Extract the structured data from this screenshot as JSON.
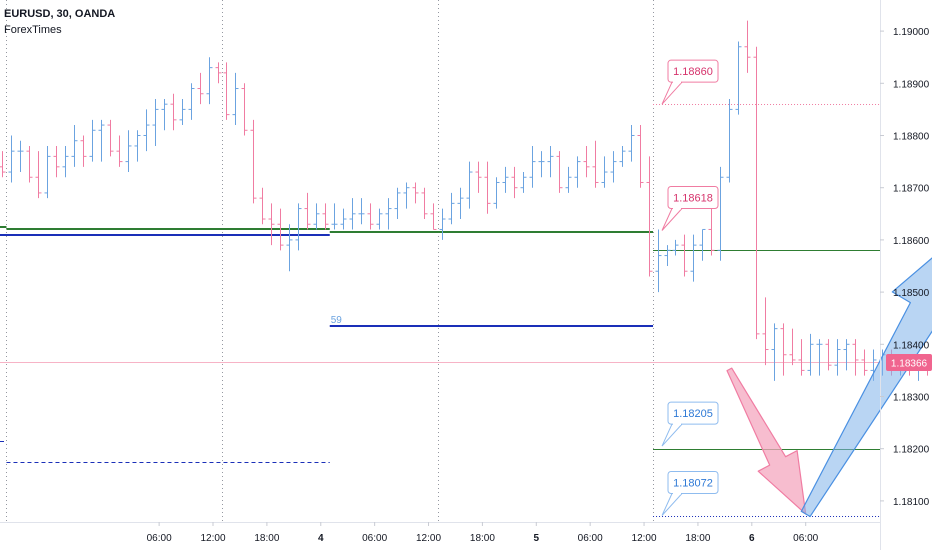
{
  "header": {
    "title": "EURUSD, 30, OANDA",
    "subtitle": "ForexTimes"
  },
  "colors": {
    "bull": "#6ba3e0",
    "bear": "#f07ca2",
    "green": "#2e7d32",
    "blue": "#1a2fb8",
    "price_line": "#f7b3c6",
    "arrow_blue": "#7fb3ea",
    "arrow_pink": "#f4a7bf",
    "label_pink_text": "#d6336c",
    "label_blue_text": "#2f7ad6",
    "current_badge": "#f0658f"
  },
  "chart_data": {
    "type": "line",
    "title": "EURUSD, 30, OANDA",
    "y_axis": {
      "ticks": [
        "1.19000",
        "1.18900",
        "1.18800",
        "1.18700",
        "1.18600",
        "1.18500",
        "1.18400",
        "1.18300",
        "1.18200",
        "1.18100"
      ],
      "range": [
        1.1805,
        1.1905
      ]
    },
    "x_axis": {
      "ticks": [
        {
          "label": "06:00",
          "t": 18.5
        },
        {
          "label": "12:00",
          "t": 24.5
        },
        {
          "label": "18:00",
          "t": 30.5
        },
        {
          "label": "4",
          "t": 36.5,
          "bold": true
        },
        {
          "label": "06:00",
          "t": 42.5
        },
        {
          "label": "12:00",
          "t": 48.5
        },
        {
          "label": "18:00",
          "t": 54.5
        },
        {
          "label": "5",
          "t": 60.5,
          "bold": true
        },
        {
          "label": "06:00",
          "t": 66.5
        },
        {
          "label": "12:00",
          "t": 72.5
        },
        {
          "label": "18:00",
          "t": 78.5
        },
        {
          "label": "6",
          "t": 84.5,
          "bold": true
        },
        {
          "label": "06:00",
          "t": 90.5
        }
      ]
    },
    "session_separators": [
      1.5,
      25.5,
      49.5,
      73.5
    ],
    "current_price": "1.18366",
    "series": [
      {
        "style": "ohlc",
        "o": [
          1.1875,
          1.1874,
          1.1873,
          1.1877,
          1.1877,
          1.1872,
          1.1869,
          1.1876,
          1.1874,
          1.1876,
          1.1879,
          1.1876,
          1.1881,
          1.1882,
          1.1877,
          1.1875,
          1.1878,
          1.188,
          1.1882,
          1.1885,
          1.1886,
          1.1883,
          1.1885,
          1.1889,
          1.1888,
          1.1893,
          1.1892,
          1.1884,
          1.1889,
          1.1881,
          1.1868,
          1.1864,
          1.1863,
          1.1859,
          1.186,
          1.1866,
          1.1863,
          1.1865,
          1.1863,
          1.1863,
          1.1864,
          1.1865,
          1.1865,
          1.1863,
          1.1865,
          1.1866,
          1.1869,
          1.187,
          1.1869,
          1.1865,
          1.1862,
          1.1864,
          1.1867,
          1.1868,
          1.1873,
          1.1872,
          1.1867,
          1.1871,
          1.1872,
          1.187,
          1.1872,
          1.1875,
          1.1875,
          1.1876,
          1.187,
          1.1872,
          1.1875,
          1.1874,
          1.1871,
          1.1873,
          1.1875,
          1.1877,
          1.188,
          1.1871,
          1.1854,
          1.1857,
          1.1858,
          1.1859,
          1.1854,
          1.1859,
          1.1862,
          1.1858,
          1.1872,
          1.1885,
          1.1897,
          1.1895,
          1.1842,
          1.1839,
          1.1843,
          1.1838,
          1.1837,
          1.1835,
          1.184,
          1.184,
          1.1836,
          1.1839,
          1.184,
          1.1837,
          1.1835,
          1.1837,
          1.1838,
          1.1836,
          1.1837,
          1.1836,
          1.1836,
          1.1835,
          1.1836,
          1.1836,
          1.1838,
          1.1838,
          1.1836,
          1.1838,
          1.1837,
          1.1832,
          1.1836,
          1.1836,
          1.1833,
          1.1836,
          1.1833,
          1.1837,
          1.1837
        ],
        "h": [
          1.1877,
          1.1877,
          1.188,
          1.1879,
          1.1878,
          1.1877,
          1.1878,
          1.1878,
          1.1878,
          1.1882,
          1.188,
          1.1883,
          1.1883,
          1.1883,
          1.188,
          1.1881,
          1.1881,
          1.1885,
          1.1887,
          1.1887,
          1.1888,
          1.1887,
          1.189,
          1.1892,
          1.1895,
          1.1894,
          1.1894,
          1.1892,
          1.189,
          1.1883,
          1.187,
          1.1867,
          1.1866,
          1.1863,
          1.1867,
          1.1869,
          1.1867,
          1.1867,
          1.1867,
          1.1866,
          1.1868,
          1.1868,
          1.1867,
          1.1866,
          1.1868,
          1.187,
          1.1871,
          1.1871,
          1.187,
          1.1867,
          1.1866,
          1.1869,
          1.187,
          1.1875,
          1.1875,
          1.1875,
          1.1872,
          1.1874,
          1.1874,
          1.1873,
          1.1878,
          1.1877,
          1.1878,
          1.1877,
          1.1874,
          1.1876,
          1.1878,
          1.1879,
          1.1876,
          1.1877,
          1.1878,
          1.1882,
          1.1882,
          1.1876,
          1.1862,
          1.1859,
          1.186,
          1.1861,
          1.1861,
          1.1862,
          1.1866,
          1.1874,
          1.1887,
          1.1898,
          1.1902,
          1.1897,
          1.1849,
          1.1844,
          1.1844,
          1.1843,
          1.1841,
          1.1842,
          1.1841,
          1.1841,
          1.1841,
          1.1841,
          1.1841,
          1.1839,
          1.1839,
          1.1839,
          1.1839,
          1.1838,
          1.1838,
          1.1838,
          1.1837,
          1.1837,
          1.1838,
          1.1839,
          1.1839,
          1.1838,
          1.1839,
          1.1839,
          1.1838,
          1.1837,
          1.1837,
          1.1837,
          1.1837,
          1.1838,
          1.1838,
          1.1838,
          1.1837
        ],
        "l": [
          1.1873,
          1.1872,
          1.1871,
          1.1873,
          1.1871,
          1.1868,
          1.1868,
          1.1872,
          1.1872,
          1.1874,
          1.1874,
          1.1875,
          1.1875,
          1.1876,
          1.1874,
          1.1873,
          1.1875,
          1.1877,
          1.1878,
          1.1881,
          1.1881,
          1.1882,
          1.1883,
          1.1886,
          1.1886,
          1.189,
          1.1883,
          1.1882,
          1.188,
          1.1867,
          1.1863,
          1.1859,
          1.1858,
          1.1854,
          1.1858,
          1.1862,
          1.1862,
          1.1862,
          1.1862,
          1.1862,
          1.1862,
          1.1863,
          1.1862,
          1.1862,
          1.1862,
          1.1864,
          1.1866,
          1.1867,
          1.1864,
          1.1862,
          1.186,
          1.1863,
          1.1864,
          1.1866,
          1.1869,
          1.1865,
          1.1866,
          1.1869,
          1.1868,
          1.1869,
          1.187,
          1.1872,
          1.1872,
          1.1869,
          1.1869,
          1.187,
          1.1872,
          1.187,
          1.187,
          1.1871,
          1.1874,
          1.1875,
          1.187,
          1.1853,
          1.185,
          1.1855,
          1.1857,
          1.1853,
          1.1852,
          1.1856,
          1.1857,
          1.1856,
          1.1871,
          1.1884,
          1.1892,
          1.1841,
          1.1836,
          1.1833,
          1.1834,
          1.1836,
          1.1834,
          1.1834,
          1.1834,
          1.1835,
          1.1834,
          1.1835,
          1.1834,
          1.1834,
          1.1833,
          1.1834,
          1.1834,
          1.1834,
          1.1834,
          1.1833,
          1.1834,
          1.1834,
          1.1833,
          1.1834,
          1.1836,
          1.1834,
          1.1834,
          1.1832,
          1.1831,
          1.1831,
          1.1832,
          1.1832,
          1.1832,
          1.1831,
          1.1832,
          1.1834,
          1.1835
        ],
        "c": [
          1.1874,
          1.1873,
          1.1877,
          1.1877,
          1.1872,
          1.1869,
          1.1876,
          1.1874,
          1.1876,
          1.1879,
          1.1876,
          1.1881,
          1.1882,
          1.1877,
          1.1875,
          1.1878,
          1.188,
          1.1882,
          1.1885,
          1.1886,
          1.1883,
          1.1885,
          1.1889,
          1.1888,
          1.1893,
          1.1892,
          1.1884,
          1.1889,
          1.1881,
          1.1868,
          1.1864,
          1.1863,
          1.1859,
          1.186,
          1.1866,
          1.1863,
          1.1865,
          1.1863,
          1.1863,
          1.1864,
          1.1865,
          1.1865,
          1.1863,
          1.1865,
          1.1866,
          1.1869,
          1.187,
          1.1869,
          1.1865,
          1.1862,
          1.1864,
          1.1867,
          1.1868,
          1.1873,
          1.1872,
          1.1867,
          1.1871,
          1.1872,
          1.187,
          1.1872,
          1.1875,
          1.1875,
          1.1876,
          1.187,
          1.1872,
          1.1875,
          1.1874,
          1.1871,
          1.1873,
          1.1875,
          1.1877,
          1.188,
          1.1871,
          1.1854,
          1.1857,
          1.1858,
          1.1859,
          1.1854,
          1.1859,
          1.1862,
          1.1858,
          1.1872,
          1.1885,
          1.1897,
          1.1895,
          1.1842,
          1.1839,
          1.1843,
          1.1838,
          1.1837,
          1.1835,
          1.184,
          1.184,
          1.1836,
          1.1839,
          1.184,
          1.1837,
          1.1835,
          1.1837,
          1.1838,
          1.1836,
          1.1837,
          1.1836,
          1.1836,
          1.1835,
          1.1836,
          1.1836,
          1.1838,
          1.1838,
          1.1836,
          1.1838,
          1.1837,
          1.1832,
          1.1836,
          1.1836,
          1.1833,
          1.1836,
          1.1833,
          1.1837,
          1.1837,
          1.1837
        ]
      }
    ],
    "levels": [
      {
        "price": 1.18625,
        "t0": -2,
        "t1": 1.5,
        "style": "green"
      },
      {
        "price": 1.1862,
        "t0": 1.5,
        "t1": 37.5,
        "style": "green"
      },
      {
        "price": 1.1861,
        "t0": -2,
        "t1": 1.5,
        "style": "blue"
      },
      {
        "price": 1.1861,
        "t0": 1.5,
        "t1": 37.5,
        "style": "blue"
      },
      {
        "price": 1.18615,
        "t0": 37.5,
        "t1": 73.5,
        "style": "green"
      },
      {
        "price": 1.18435,
        "t0": 37.5,
        "t1": 73.5,
        "style": "blue",
        "label": "59"
      },
      {
        "price": 1.18215,
        "t0": -2,
        "t1": 1.5,
        "style": "blue-dashed"
      },
      {
        "price": 1.18175,
        "t0": 1.5,
        "t1": 37.5,
        "style": "blue-dashed"
      },
      {
        "price": 1.1858,
        "t0": 73.5,
        "t1": 109.5,
        "style": "green-thin"
      },
      {
        "price": 1.182,
        "t0": 73.5,
        "t1": 109.5,
        "style": "green-thin"
      },
      {
        "price": 1.1886,
        "t0": 73.5,
        "t1": 109.5,
        "style": "pink-dotted"
      },
      {
        "price": 1.18072,
        "t0": 73.5,
        "t1": 109.5,
        "style": "blue-dotted"
      }
    ],
    "callouts": [
      {
        "text": "1.18860",
        "t": 74.5,
        "price": 1.1886,
        "tone": "pink"
      },
      {
        "text": "1.18618",
        "t": 74.5,
        "price": 1.18618,
        "tone": "pink"
      },
      {
        "text": "1.18205",
        "t": 74.5,
        "price": 1.18205,
        "tone": "blue"
      },
      {
        "text": "1.18072",
        "t": 74.5,
        "price": 1.18072,
        "tone": "blue"
      }
    ],
    "arrows": [
      {
        "tone": "pink",
        "from": {
          "t": 82,
          "price": 1.18352
        },
        "to": {
          "t": 90.5,
          "price": 1.18075
        }
      },
      {
        "tone": "blue",
        "from": {
          "t": 90.5,
          "price": 1.18075
        },
        "to": {
          "t": 110,
          "price": 1.18645
        }
      }
    ]
  }
}
